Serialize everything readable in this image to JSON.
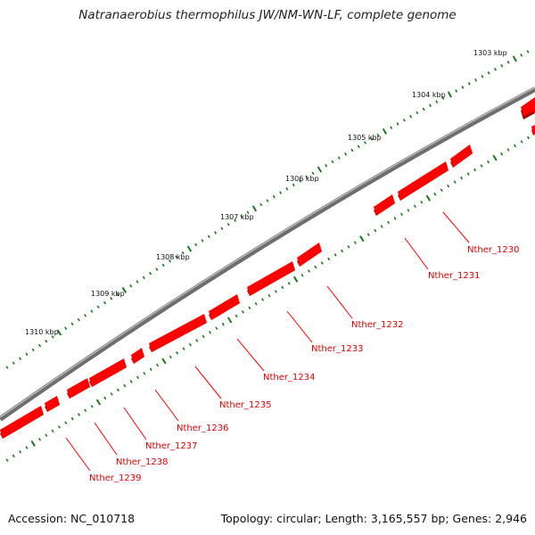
{
  "title": "Natranaerobius thermophilus JW/NM-WN-LF, complete genome",
  "footer": {
    "accession": "Accession: NC_010718",
    "summary": "Topology: circular; Length: 3,165,557 bp; Genes: 2,946"
  },
  "colors": {
    "backbone": "#7a7a7a",
    "gene": "#ff0000",
    "tick": "#1a7a1a",
    "gene_label": "#e00000"
  },
  "scale_labels": [
    "1303 kbp",
    "1304 kbp",
    "1305 kbp",
    "1306 kbp",
    "1307 kbp",
    "1308 kbp",
    "1309 kbp",
    "1310 kbp"
  ],
  "genes": [
    {
      "name": "Nther_1230"
    },
    {
      "name": "Nther_1231"
    },
    {
      "name": "Nther_1232"
    },
    {
      "name": "Nther_1233"
    },
    {
      "name": "Nther_1234"
    },
    {
      "name": "Nther_1235"
    },
    {
      "name": "Nther_1236"
    },
    {
      "name": "Nther_1237"
    },
    {
      "name": "Nther_1238"
    },
    {
      "name": "Nther_1239"
    }
  ]
}
